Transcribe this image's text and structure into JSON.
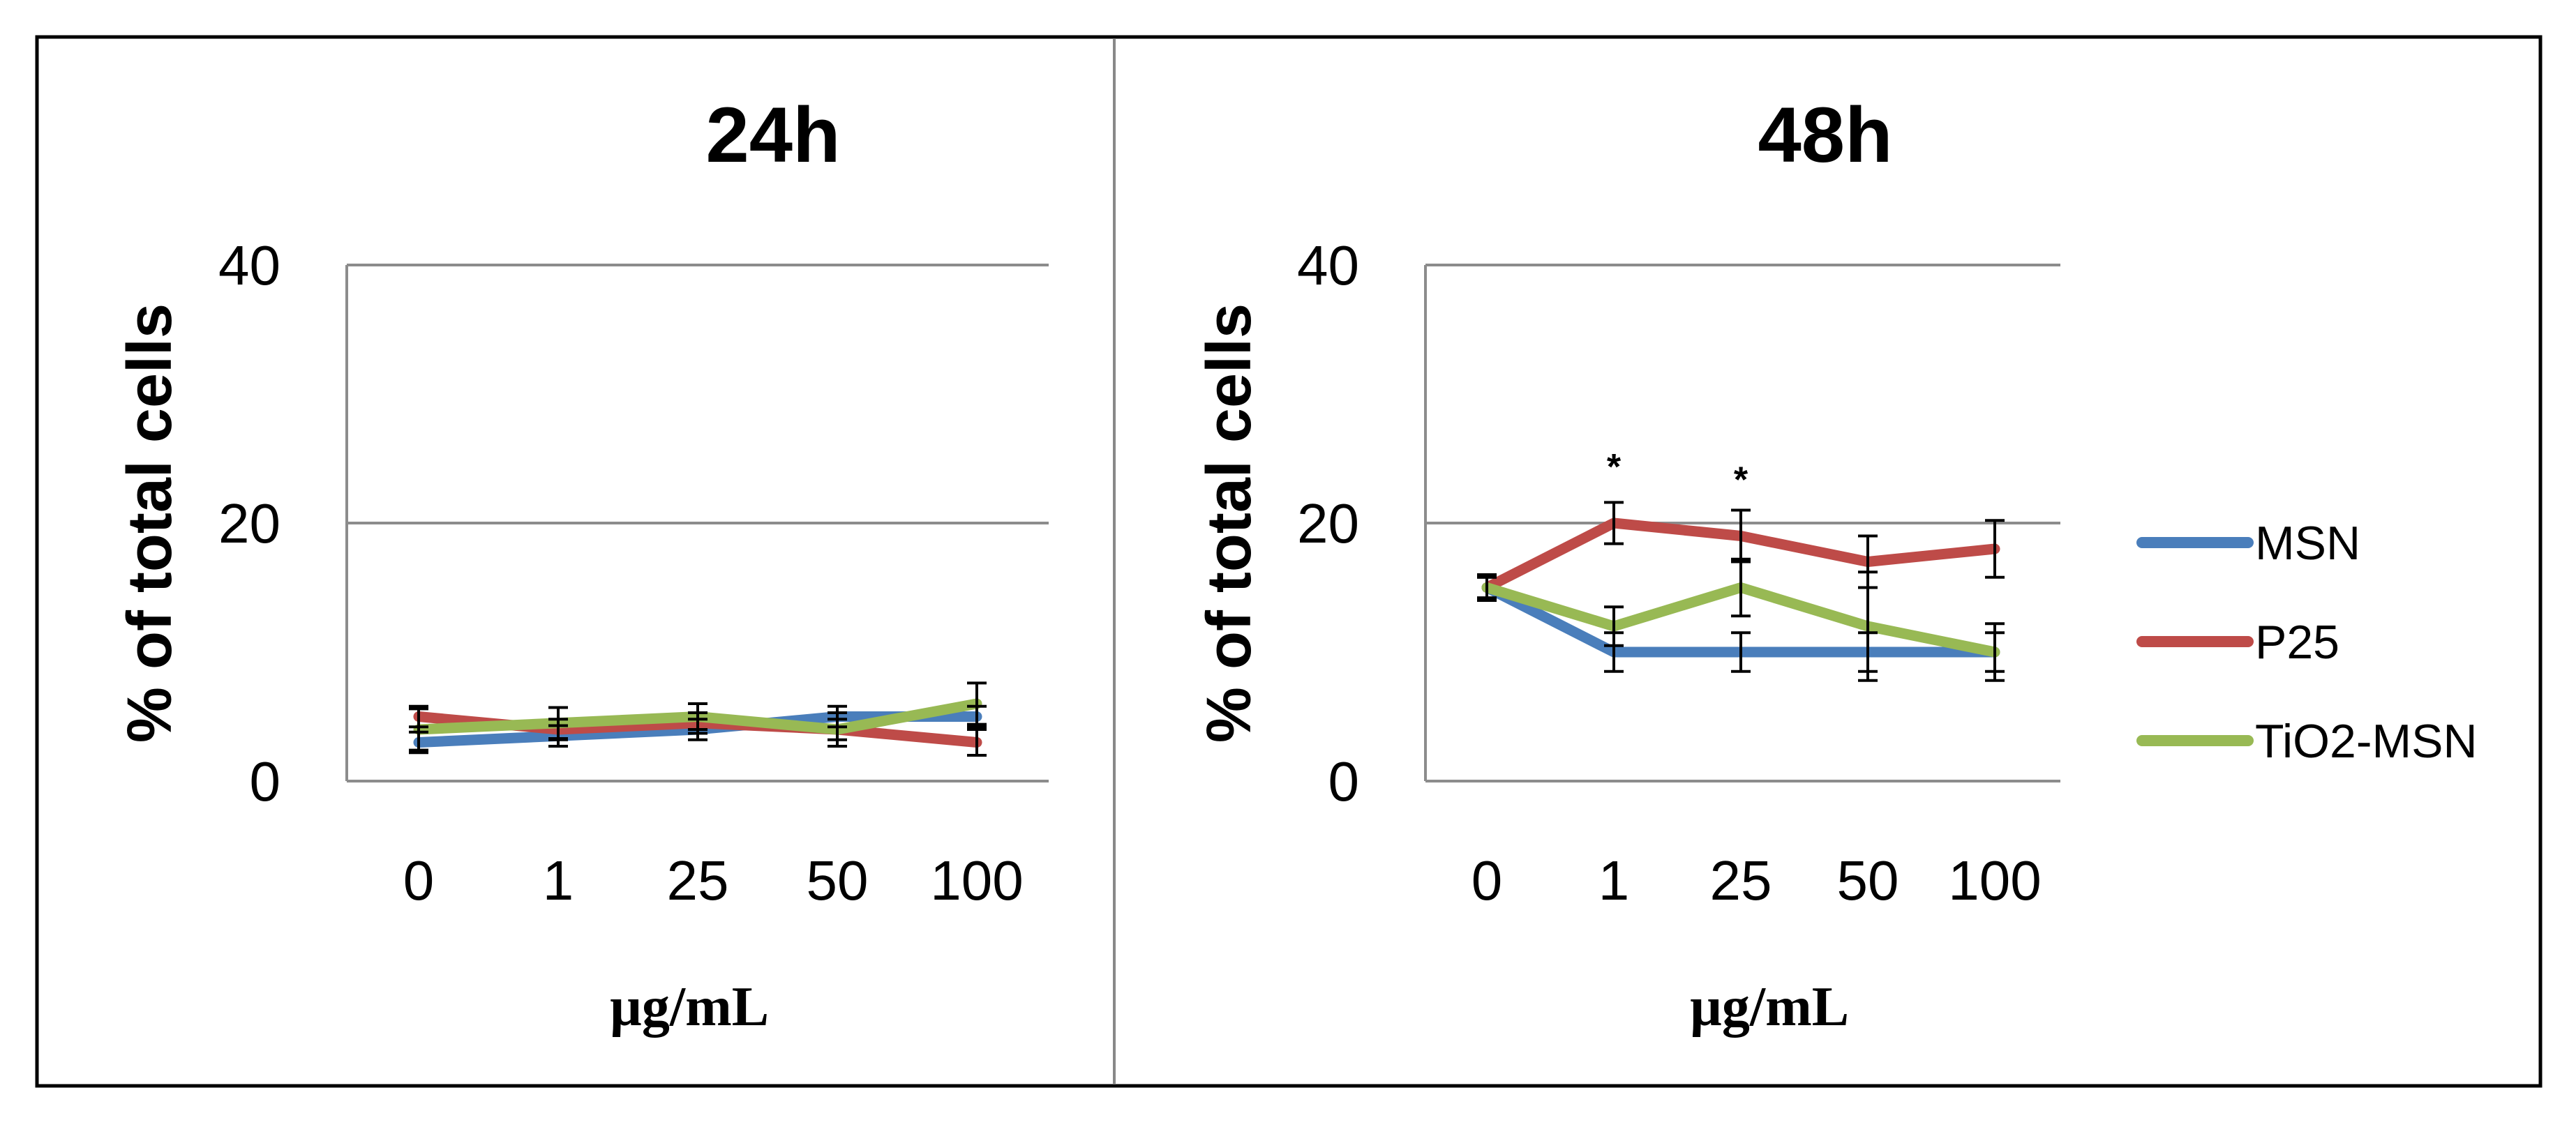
{
  "chart_data": [
    {
      "type": "line",
      "title": "24h",
      "xlabel": "µg/mL",
      "ylabel": "% of total cells",
      "categories": [
        "0",
        "1",
        "25",
        "50",
        "100"
      ],
      "ylim": [
        0,
        40
      ],
      "yticks": [
        "0",
        "20",
        "40"
      ],
      "grid": true,
      "series": [
        {
          "name": "MSN",
          "color": "#4a7ebb",
          "values": [
            3,
            3.5,
            4,
            5,
            5
          ],
          "errors": [
            0.8,
            0.8,
            0.8,
            0.8,
            0.8
          ]
        },
        {
          "name": "P25",
          "color": "#be4b48",
          "values": [
            5,
            4,
            4.5,
            4,
            3
          ],
          "errors": [
            0.8,
            0.8,
            0.8,
            0.8,
            1.0
          ]
        },
        {
          "name": "TiO2-MSN",
          "color": "#98b954",
          "values": [
            4,
            4.5,
            5,
            4,
            6
          ],
          "errors": [
            1.6,
            1.2,
            1.0,
            1.3,
            1.6
          ]
        }
      ],
      "annotations": []
    },
    {
      "type": "line",
      "title": "48h",
      "xlabel": "µg/mL",
      "ylabel": "% of total cells",
      "categories": [
        "0",
        "1",
        "25",
        "50",
        "100"
      ],
      "ylim": [
        0,
        40
      ],
      "yticks": [
        "0",
        "20",
        "40"
      ],
      "grid": true,
      "series": [
        {
          "name": "MSN",
          "color": "#4a7ebb",
          "values": [
            15,
            10,
            10,
            10,
            10
          ],
          "errors": [
            0.8,
            1.5,
            1.5,
            1.5,
            1.5
          ]
        },
        {
          "name": "P25",
          "color": "#be4b48",
          "values": [
            15,
            20,
            19,
            17,
            18
          ],
          "errors": [
            1.0,
            1.6,
            2.0,
            2.0,
            2.2
          ]
        },
        {
          "name": "TiO2-MSN",
          "color": "#98b954",
          "values": [
            15,
            12,
            15,
            12,
            10
          ],
          "errors": [
            0.8,
            1.5,
            2.2,
            4.2,
            2.2
          ]
        }
      ],
      "annotations": [
        {
          "text": "*",
          "category": "1",
          "value": 23.4
        },
        {
          "text": "*",
          "category": "25",
          "value": 22.4
        }
      ],
      "legend": {
        "position": "right",
        "entries": [
          "MSN",
          "P25",
          "TiO2-MSN"
        ]
      }
    }
  ]
}
